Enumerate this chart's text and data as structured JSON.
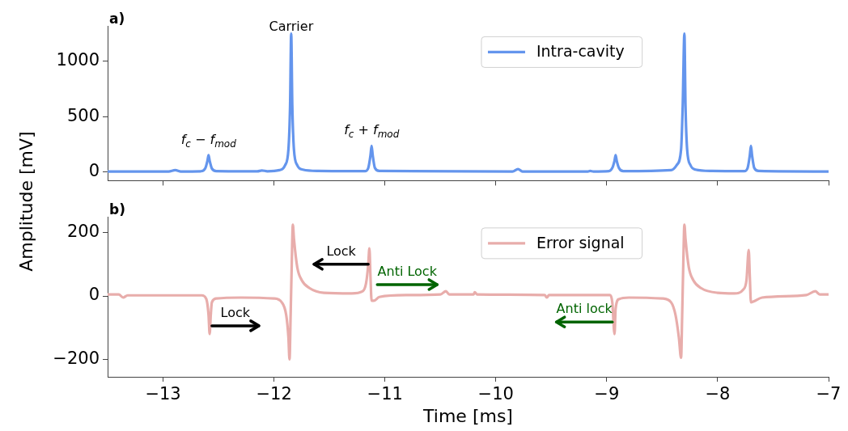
{
  "chart_data": [
    {
      "type": "line",
      "ylabel": "Amplitude [mV]",
      "xlim": [
        -13.5,
        -7
      ],
      "xticks": [
        -13,
        -12,
        -11,
        -10,
        -9,
        -8,
        -7
      ],
      "ylim": [
        -80,
        1320
      ],
      "yticks": [
        0,
        500,
        1000
      ],
      "tick_labels": "y",
      "legend": "top",
      "grid": false,
      "annotations": [
        "a)",
        {
          "text": "Carrier",
          "x": -11.845,
          "y": 1250
        },
        {
          "text": "f$_{c}$ − f$_{mod}$",
          "x": -12.59,
          "y": 150
        },
        {
          "text": "f$_{c}$ + f$_{mod}$",
          "x": -11.12,
          "y": 235
        }
      ],
      "series": [
        {
          "name": "Intra-cavity",
          "color": "#6495ed",
          "x": [
            -13.5,
            -12.95,
            -12.89,
            -12.84,
            -12.66,
            -12.62,
            -12.6,
            -12.59,
            -12.58,
            -12.56,
            -12.52,
            -12.15,
            -12.11,
            -12.06,
            -11.95,
            -11.9,
            -11.87,
            -11.855,
            -11.845,
            -11.835,
            -11.82,
            -11.79,
            -11.74,
            -11.6,
            -11.18,
            -11.15,
            -11.13,
            -11.12,
            -11.11,
            -11.09,
            -11.05,
            -9.85,
            -9.8,
            -9.76,
            -9.17,
            -9.15,
            -9.12,
            -8.98,
            -8.95,
            -8.93,
            -8.92,
            -8.91,
            -8.89,
            -8.85,
            -8.42,
            -8.37,
            -8.33,
            -8.315,
            -8.3,
            -8.29,
            -8.275,
            -8.245,
            -8.2,
            -8.05,
            -7.76,
            -7.73,
            -7.71,
            -7.7,
            -7.69,
            -7.67,
            -7.63,
            -7
          ],
          "values": [
            3,
            3,
            15,
            3,
            5,
            30,
            100,
            150,
            100,
            30,
            6,
            4,
            12,
            5,
            15,
            60,
            200,
            600,
            1250,
            600,
            200,
            60,
            20,
            8,
            6,
            35,
            150,
            235,
            150,
            35,
            8,
            3,
            25,
            3,
            3,
            8,
            3,
            6,
            35,
            100,
            150,
            100,
            35,
            6,
            15,
            60,
            200,
            600,
            1250,
            600,
            200,
            60,
            20,
            8,
            6,
            35,
            150,
            235,
            150,
            35,
            8,
            3
          ]
        }
      ]
    },
    {
      "type": "line",
      "xlabel": "Time [ms]",
      "xlim": [
        -13.5,
        -7
      ],
      "xticks": [
        -13,
        -12,
        -11,
        -10,
        -9,
        -8,
        -7
      ],
      "ylim": [
        -255,
        250
      ],
      "yticks": [
        -200,
        0,
        200
      ],
      "legend": "top",
      "grid": false,
      "annotations": [
        "b)",
        {
          "text": "Lock",
          "x": -12.56,
          "y": -94
        },
        {
          "text": "Lock",
          "x": -11.15,
          "y": 100
        },
        "Anti Lock",
        {
          "text": "Anti lock",
          "x": -8.95,
          "y": -82
        }
      ],
      "series": [
        {
          "name": "Error signal",
          "color": "#e8adab",
          "x": [
            -13.5,
            -13.4,
            -13.36,
            -13.32,
            -12.65,
            -12.61,
            -12.59,
            -12.58,
            -12.57,
            -12.56,
            -12.52,
            -12.3,
            -12.0,
            -11.93,
            -11.89,
            -11.87,
            -11.86,
            -11.85,
            -11.84,
            -11.83,
            -11.82,
            -11.79,
            -11.75,
            -11.68,
            -11.55,
            -11.3,
            -11.2,
            -11.17,
            -11.15,
            -11.14,
            -11.13,
            -11.12,
            -11.1,
            -11.05,
            -10.8,
            -10.5,
            -10.45,
            -10.42,
            -10.2,
            -10.19,
            -10.17,
            -9.56,
            -9.54,
            -9.52,
            -8.97,
            -8.95,
            -8.93,
            -8.92,
            -8.89,
            -8.8,
            -8.5,
            -8.42,
            -8.38,
            -8.35,
            -8.33,
            -8.32,
            -8.31,
            -8.3,
            -8.29,
            -8.26,
            -8.22,
            -8.15,
            -8.0,
            -7.85,
            -7.77,
            -7.74,
            -7.72,
            -7.71,
            -7.7,
            -7.68,
            -7.6,
            -7.2,
            -7.12,
            -7.08,
            -7.0
          ],
          "values": [
            5,
            5,
            -5,
            2,
            2,
            -10,
            -60,
            -120,
            -60,
            -20,
            -8,
            -5,
            -8,
            -20,
            -60,
            -130,
            -200,
            -60,
            100,
            225,
            180,
            90,
            50,
            25,
            10,
            8,
            15,
            40,
            100,
            150,
            60,
            -15,
            -15,
            -3,
            3,
            5,
            15,
            5,
            5,
            12,
            5,
            3,
            -5,
            3,
            3,
            -20,
            -120,
            -40,
            -10,
            -5,
            -8,
            -20,
            -60,
            -130,
            -195,
            -60,
            100,
            225,
            180,
            90,
            50,
            25,
            10,
            8,
            20,
            50,
            145,
            60,
            -20,
            -18,
            -5,
            3,
            15,
            5,
            5
          ]
        }
      ]
    }
  ]
}
